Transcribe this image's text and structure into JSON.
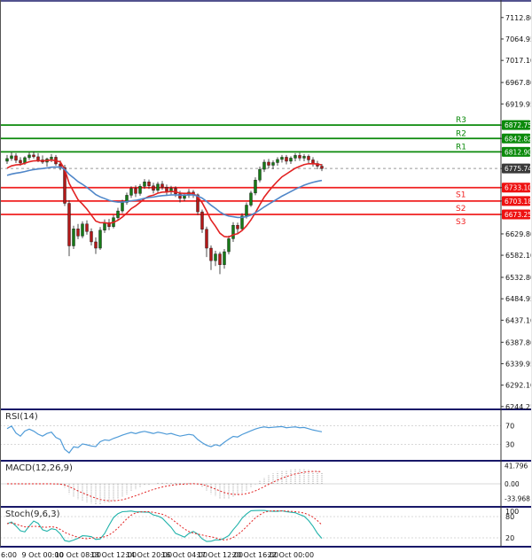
{
  "colors": {
    "up_candle": "#167a16",
    "down_candle": "#b21818",
    "wick": "#222222",
    "ma_fast": "#e22222",
    "ma_slow": "#4f86c8",
    "resistance_line": "#0b8a0b",
    "support_line": "#f02121",
    "resistance_box": "#0b8a0b",
    "support_box": "#ee1111",
    "price_box": "#3a3a3a",
    "current_price_line": "#999999",
    "rsi_line": "#4f9bd8",
    "macd_histogram": "#9a9a9a",
    "macd_signal": "#e22222",
    "stoch_main": "#20b2aa",
    "stoch_signal": "#e22222",
    "separator": "#181868",
    "axis_text": "#111111"
  },
  "price_axis": {
    "ticks": [
      {
        "text": "7112.80",
        "value": 7112.8
      },
      {
        "text": "7064.95",
        "value": 7064.95
      },
      {
        "text": "7017.10",
        "value": 7017.1
      },
      {
        "text": "6967.80",
        "value": 6967.8
      },
      {
        "text": "6919.95",
        "value": 6919.95
      },
      {
        "text": "6629.80",
        "value": 6629.8
      },
      {
        "text": "6582.10",
        "value": 6582.1
      },
      {
        "text": "6532.80",
        "value": 6532.8
      },
      {
        "text": "6484.95",
        "value": 6484.95
      },
      {
        "text": "6437.10",
        "value": 6437.1
      },
      {
        "text": "6387.80",
        "value": 6387.8
      },
      {
        "text": "6339.95",
        "value": 6339.95
      },
      {
        "text": "6292.10",
        "value": 6292.1
      },
      {
        "text": "6244.25",
        "value": 6244.25
      }
    ],
    "boxes": [
      {
        "text": "6872.75",
        "value": 6872.75,
        "type": "resistance"
      },
      {
        "text": "6842.82",
        "value": 6842.82,
        "type": "resistance"
      },
      {
        "text": "6812.90",
        "value": 6812.9,
        "type": "resistance"
      },
      {
        "text": "6775.74",
        "value": 6775.74,
        "type": "price"
      },
      {
        "text": "6733.10",
        "value": 6733.1,
        "type": "support"
      },
      {
        "text": "6703.18",
        "value": 6703.18,
        "type": "support"
      },
      {
        "text": "6673.25",
        "value": 6673.25,
        "type": "support"
      }
    ]
  },
  "time_axis": {
    "labels": [
      {
        "text": "6:00",
        "index": 0
      },
      {
        "text": "9 Oct 00:00",
        "index": 8
      },
      {
        "text": "10 Oct 08:00",
        "index": 16
      },
      {
        "text": "13 Oct 12:00",
        "index": 24
      },
      {
        "text": "14 Oct 20:00",
        "index": 32
      },
      {
        "text": "16 Oct 04:00",
        "index": 40
      },
      {
        "text": "17 Oct 12:00",
        "index": 48
      },
      {
        "text": "20 Oct 16:00",
        "index": 56
      },
      {
        "text": "22 Oct 00:00",
        "index": 64
      }
    ]
  },
  "panels": {
    "rsi": {
      "label": "RSI(14)",
      "period": 14,
      "axis_labels": [
        {
          "text": "70",
          "value": 70
        },
        {
          "text": "30",
          "value": 30
        }
      ]
    },
    "macd": {
      "label": "MACD(12,26,9)",
      "fast": 12,
      "slow": 26,
      "signal": 9,
      "axis_labels": [
        {
          "text": "41.796",
          "value": 41.796
        },
        {
          "text": "0.00",
          "value": 0
        },
        {
          "text": "-33.968",
          "value": -33.968
        }
      ]
    },
    "stoch": {
      "label": "Stoch(9,6,3)",
      "k": 9,
      "d": 6,
      "slowing": 3,
      "axis_labels": [
        {
          "text": "100",
          "value": 100
        },
        {
          "text": "80",
          "value": 80
        },
        {
          "text": "20",
          "value": 20
        }
      ]
    }
  },
  "chart_data": {
    "type": "candlestick",
    "price_range": {
      "min": 6240,
      "max": 7148
    },
    "levels": {
      "resistance": [
        {
          "label": "R3",
          "value": 6872.75
        },
        {
          "label": "R2",
          "value": 6842.82
        },
        {
          "label": "R1",
          "value": 6812.9
        }
      ],
      "support": [
        {
          "label": "S1",
          "value": 6733.1
        },
        {
          "label": "S2",
          "value": 6703.18
        },
        {
          "label": "S3",
          "value": 6673.25
        }
      ],
      "current_price": 6775.74
    },
    "moving_averages": [
      {
        "period": 10,
        "seed": 6772,
        "color_key": "ma_fast"
      },
      {
        "period": 30,
        "seed": 6758,
        "color_key": "ma_slow"
      }
    ],
    "candles": [
      [
        6792,
        6806,
        6786,
        6798
      ],
      [
        6798,
        6812,
        6793,
        6804
      ],
      [
        6804,
        6810,
        6788,
        6794
      ],
      [
        6794,
        6801,
        6782,
        6788
      ],
      [
        6788,
        6803,
        6784,
        6800
      ],
      [
        6800,
        6812,
        6795,
        6806
      ],
      [
        6806,
        6814,
        6798,
        6802
      ],
      [
        6802,
        6810,
        6790,
        6795
      ],
      [
        6795,
        6805,
        6786,
        6790
      ],
      [
        6790,
        6800,
        6780,
        6797
      ],
      [
        6797,
        6808,
        6790,
        6801
      ],
      [
        6801,
        6806,
        6782,
        6786
      ],
      [
        6786,
        6794,
        6772,
        6778
      ],
      [
        6778,
        6784,
        6692,
        6698
      ],
      [
        6698,
        6705,
        6580,
        6603
      ],
      [
        6603,
        6648,
        6596,
        6641
      ],
      [
        6641,
        6652,
        6618,
        6625
      ],
      [
        6625,
        6658,
        6620,
        6652
      ],
      [
        6652,
        6660,
        6628,
        6635
      ],
      [
        6635,
        6642,
        6604,
        6612
      ],
      [
        6612,
        6622,
        6585,
        6598
      ],
      [
        6598,
        6645,
        6594,
        6638
      ],
      [
        6638,
        6662,
        6632,
        6655
      ],
      [
        6655,
        6663,
        6638,
        6646
      ],
      [
        6646,
        6672,
        6642,
        6666
      ],
      [
        6666,
        6688,
        6660,
        6681
      ],
      [
        6681,
        6706,
        6676,
        6700
      ],
      [
        6700,
        6722,
        6695,
        6716
      ],
      [
        6716,
        6736,
        6710,
        6731
      ],
      [
        6731,
        6738,
        6712,
        6720
      ],
      [
        6720,
        6741,
        6715,
        6736
      ],
      [
        6736,
        6752,
        6730,
        6746
      ],
      [
        6746,
        6751,
        6730,
        6737
      ],
      [
        6737,
        6744,
        6720,
        6727
      ],
      [
        6727,
        6746,
        6722,
        6741
      ],
      [
        6741,
        6748,
        6728,
        6734
      ],
      [
        6734,
        6740,
        6716,
        6724
      ],
      [
        6724,
        6737,
        6718,
        6731
      ],
      [
        6731,
        6736,
        6712,
        6719
      ],
      [
        6719,
        6726,
        6700,
        6709
      ],
      [
        6709,
        6722,
        6703,
        6716
      ],
      [
        6716,
        6730,
        6710,
        6723
      ],
      [
        6723,
        6728,
        6710,
        6717
      ],
      [
        6717,
        6720,
        6672,
        6679
      ],
      [
        6679,
        6684,
        6632,
        6640
      ],
      [
        6640,
        6646,
        6578,
        6598
      ],
      [
        6598,
        6604,
        6549,
        6570
      ],
      [
        6570,
        6592,
        6558,
        6585
      ],
      [
        6585,
        6590,
        6540,
        6561
      ],
      [
        6561,
        6596,
        6552,
        6590
      ],
      [
        6590,
        6626,
        6584,
        6619
      ],
      [
        6619,
        6656,
        6612,
        6649
      ],
      [
        6649,
        6655,
        6630,
        6641
      ],
      [
        6641,
        6676,
        6636,
        6670
      ],
      [
        6670,
        6700,
        6664,
        6694
      ],
      [
        6694,
        6726,
        6690,
        6721
      ],
      [
        6721,
        6756,
        6716,
        6750
      ],
      [
        6750,
        6780,
        6745,
        6774
      ],
      [
        6774,
        6796,
        6768,
        6790
      ],
      [
        6790,
        6797,
        6776,
        6783
      ],
      [
        6783,
        6794,
        6774,
        6789
      ],
      [
        6789,
        6801,
        6782,
        6796
      ],
      [
        6796,
        6806,
        6789,
        6801
      ],
      [
        6801,
        6806,
        6785,
        6792
      ],
      [
        6792,
        6803,
        6786,
        6799
      ],
      [
        6799,
        6810,
        6792,
        6805
      ],
      [
        6805,
        6811,
        6793,
        6799
      ],
      [
        6799,
        6808,
        6792,
        6803
      ],
      [
        6803,
        6807,
        6788,
        6795
      ],
      [
        6795,
        6801,
        6780,
        6787
      ],
      [
        6787,
        6793,
        6774,
        6781
      ],
      [
        6781,
        6786,
        6770,
        6775.74
      ]
    ]
  }
}
